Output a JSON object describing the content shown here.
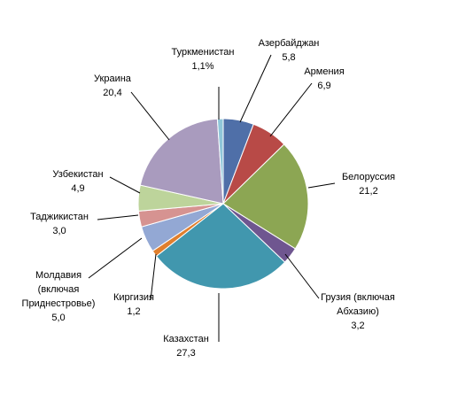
{
  "chart_data": {
    "type": "pie",
    "title": "",
    "slices": [
      {
        "name": "Азербайджан",
        "value": 5.8,
        "value_label": "5,8",
        "color": "#4f6fa8"
      },
      {
        "name": "Армения",
        "value": 6.9,
        "value_label": "6,9",
        "color": "#b84a47"
      },
      {
        "name": "Белоруссия",
        "value": 21.2,
        "value_label": "21,2",
        "color": "#8ca653"
      },
      {
        "name": "Грузия (включая Абхазию)",
        "name_lines": [
          "Грузия (включая",
          "Абхазию)"
        ],
        "value": 3.2,
        "value_label": "3,2",
        "color": "#6f5690"
      },
      {
        "name": "Казахстан",
        "value": 27.3,
        "value_label": "27,3",
        "color": "#4197ae"
      },
      {
        "name": "Киргизия",
        "value": 1.2,
        "value_label": "1,2",
        "color": "#e07f2e"
      },
      {
        "name": "Молдавия (включая Приднестровье)",
        "name_lines": [
          "Молдавия",
          "(включая",
          "Приднестровье)"
        ],
        "value": 5.0,
        "value_label": "5,0",
        "color": "#93a8d4"
      },
      {
        "name": "Таджикистан",
        "value": 3.0,
        "value_label": "3,0",
        "color": "#d69391"
      },
      {
        "name": "Узбекистан",
        "value": 4.9,
        "value_label": "4,9",
        "color": "#bdd49b"
      },
      {
        "name": "Украина",
        "value": 20.4,
        "value_label": "20,4",
        "color": "#a99bbe"
      },
      {
        "name": "Туркменистан",
        "value": 1.1,
        "value_label": "1,1%",
        "color": "#8fc6d9"
      }
    ]
  }
}
